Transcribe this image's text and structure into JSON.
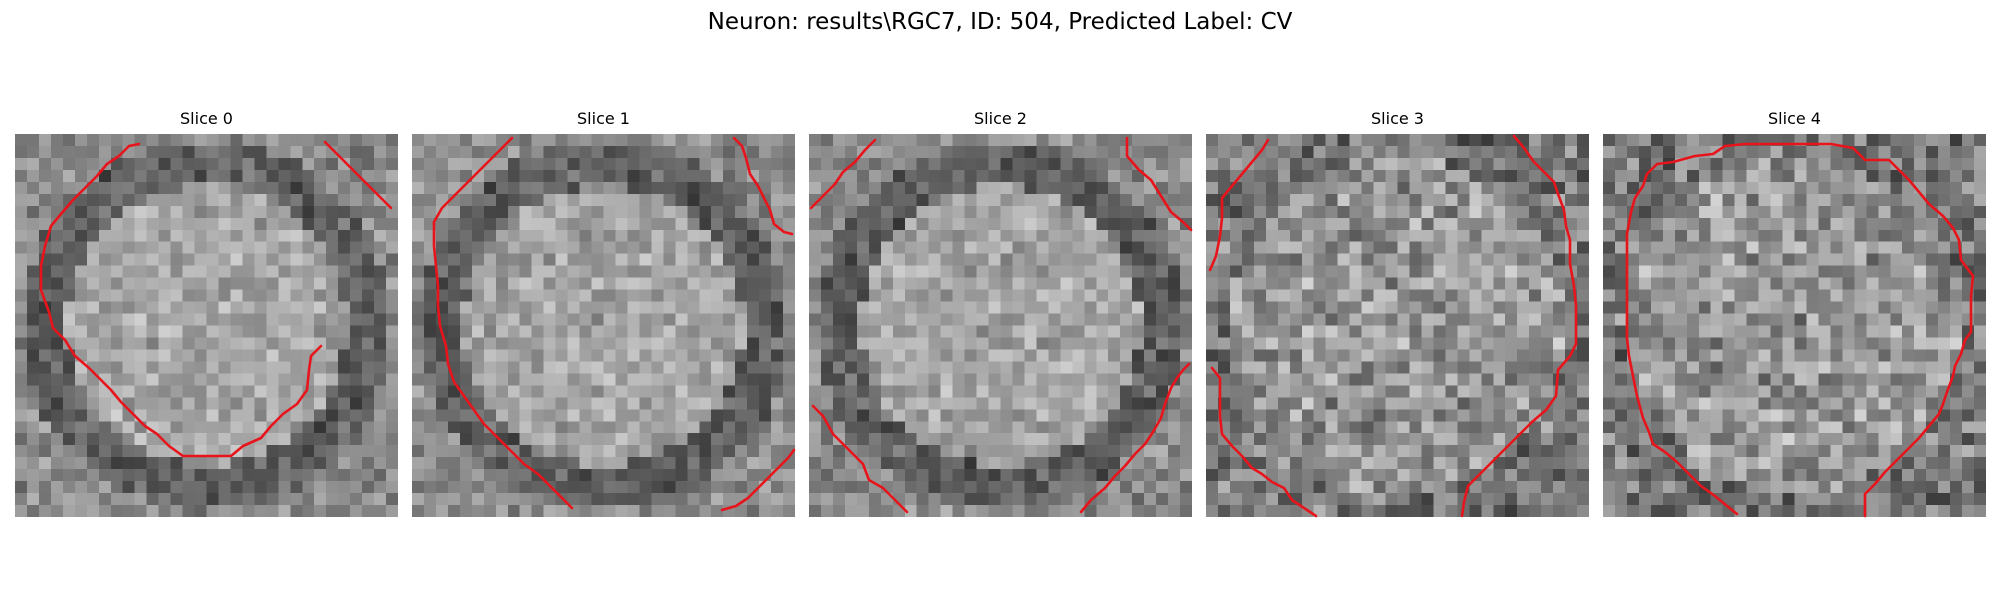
{
  "figure": {
    "title": "Neuron: results\\RGC7, ID: 504, Predicted Label: CV",
    "contour_color": "#e8141c",
    "colormap": "gray",
    "axes_visible": false
  },
  "slices": [
    {
      "title": "Slice 0"
    },
    {
      "title": "Slice 1"
    },
    {
      "title": "Slice 2"
    },
    {
      "title": "Slice 3"
    },
    {
      "title": "Slice 4"
    }
  ]
}
